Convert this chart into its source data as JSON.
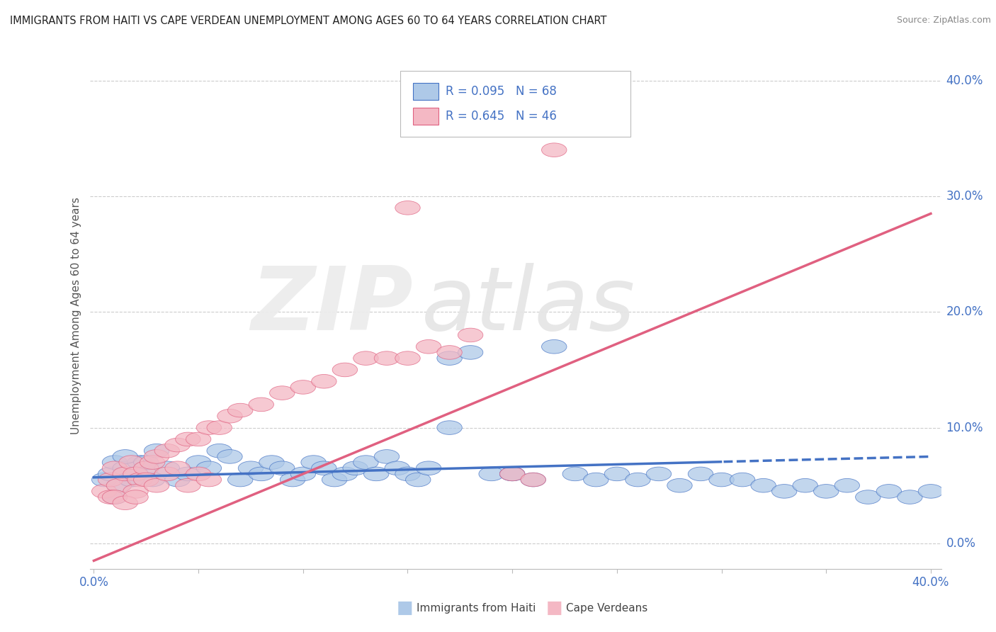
{
  "title": "IMMIGRANTS FROM HAITI VS CAPE VERDEAN UNEMPLOYMENT AMONG AGES 60 TO 64 YEARS CORRELATION CHART",
  "source": "Source: ZipAtlas.com",
  "ylabel": "Unemployment Among Ages 60 to 64 years",
  "ytick_vals": [
    0.0,
    0.1,
    0.2,
    0.3,
    0.4
  ],
  "xlim": [
    -0.002,
    0.405
  ],
  "ylim": [
    -0.022,
    0.415
  ],
  "haiti_color": "#aec9e8",
  "haiti_edge": "#4472c4",
  "cv_color": "#f4b8c4",
  "cv_edge": "#e06080",
  "haiti_R": 0.095,
  "haiti_N": 68,
  "cv_R": 0.645,
  "cv_N": 46,
  "legend_label_haiti": "Immigrants from Haiti",
  "legend_label_cv": "Cape Verdeans",
  "tick_label_color": "#4472c4",
  "grid_color": "#cccccc",
  "haiti_scatter_x": [
    0.005,
    0.008,
    0.01,
    0.012,
    0.015,
    0.018,
    0.02,
    0.022,
    0.025,
    0.028,
    0.01,
    0.015,
    0.018,
    0.02,
    0.025,
    0.03,
    0.035,
    0.04,
    0.045,
    0.05,
    0.055,
    0.06,
    0.065,
    0.07,
    0.075,
    0.08,
    0.085,
    0.09,
    0.095,
    0.1,
    0.105,
    0.11,
    0.115,
    0.12,
    0.125,
    0.13,
    0.135,
    0.14,
    0.145,
    0.15,
    0.155,
    0.16,
    0.17,
    0.18,
    0.19,
    0.2,
    0.21,
    0.22,
    0.23,
    0.24,
    0.25,
    0.26,
    0.27,
    0.28,
    0.29,
    0.3,
    0.31,
    0.32,
    0.33,
    0.34,
    0.35,
    0.36,
    0.37,
    0.38,
    0.39,
    0.4,
    0.17,
    0.2
  ],
  "haiti_scatter_y": [
    0.055,
    0.06,
    0.07,
    0.05,
    0.065,
    0.055,
    0.06,
    0.07,
    0.065,
    0.055,
    0.04,
    0.075,
    0.055,
    0.06,
    0.07,
    0.08,
    0.065,
    0.055,
    0.06,
    0.07,
    0.065,
    0.08,
    0.075,
    0.055,
    0.065,
    0.06,
    0.07,
    0.065,
    0.055,
    0.06,
    0.07,
    0.065,
    0.055,
    0.06,
    0.065,
    0.07,
    0.06,
    0.075,
    0.065,
    0.06,
    0.055,
    0.065,
    0.16,
    0.165,
    0.06,
    0.06,
    0.055,
    0.17,
    0.06,
    0.055,
    0.06,
    0.055,
    0.06,
    0.05,
    0.06,
    0.055,
    0.055,
    0.05,
    0.045,
    0.05,
    0.045,
    0.05,
    0.04,
    0.045,
    0.04,
    0.045,
    0.1,
    0.06
  ],
  "cv_scatter_x": [
    0.005,
    0.008,
    0.01,
    0.012,
    0.015,
    0.018,
    0.02,
    0.022,
    0.025,
    0.028,
    0.03,
    0.035,
    0.04,
    0.045,
    0.05,
    0.055,
    0.06,
    0.065,
    0.07,
    0.08,
    0.09,
    0.1,
    0.11,
    0.12,
    0.13,
    0.14,
    0.15,
    0.16,
    0.17,
    0.18,
    0.02,
    0.025,
    0.03,
    0.035,
    0.04,
    0.045,
    0.05,
    0.055,
    0.2,
    0.21,
    0.008,
    0.01,
    0.015,
    0.02,
    0.22,
    0.15
  ],
  "cv_scatter_y": [
    0.045,
    0.055,
    0.065,
    0.05,
    0.06,
    0.07,
    0.06,
    0.055,
    0.065,
    0.07,
    0.075,
    0.08,
    0.085,
    0.09,
    0.09,
    0.1,
    0.1,
    0.11,
    0.115,
    0.12,
    0.13,
    0.135,
    0.14,
    0.15,
    0.16,
    0.16,
    0.16,
    0.17,
    0.165,
    0.18,
    0.045,
    0.055,
    0.05,
    0.06,
    0.065,
    0.05,
    0.06,
    0.055,
    0.06,
    0.055,
    0.04,
    0.04,
    0.035,
    0.04,
    0.34,
    0.29
  ]
}
